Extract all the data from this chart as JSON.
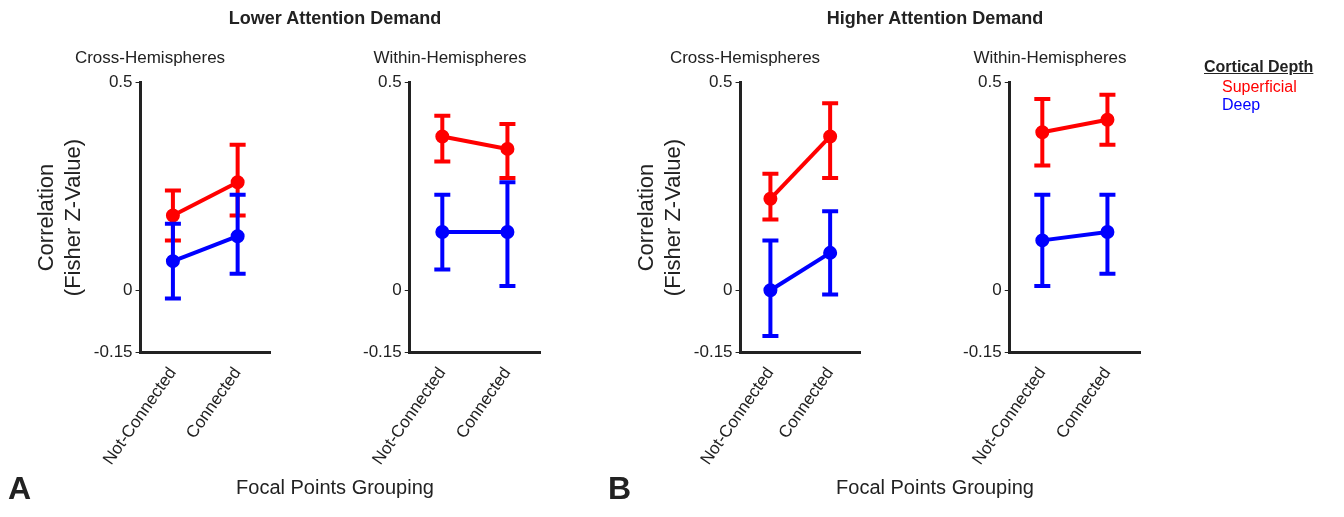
{
  "chart_data": [
    {
      "type": "line",
      "title": "Lower Attention Demand",
      "subtitle": "Cross-Hemispheres",
      "xlabel": "Focal Points Grouping",
      "ylabel": "Correlation (Fisher Z-Value)",
      "annotations": [
        "A"
      ],
      "categories": [
        "Not-Connected",
        "Connected"
      ],
      "ylim": [
        -0.15,
        0.5
      ],
      "yticks": [
        -0.15,
        0,
        0.5
      ],
      "grid": false,
      "legend": false,
      "marker": "circle",
      "line_style": "solid",
      "series": [
        {
          "color": "#ff0000",
          "values": [
            0.18,
            0.26
          ],
          "errors": [
            [
              0.12,
              0.24
            ],
            [
              0.18,
              0.35
            ]
          ]
        },
        {
          "color": "#0000ff",
          "values": [
            0.07,
            0.13
          ],
          "errors": [
            [
              -0.02,
              0.16
            ],
            [
              0.04,
              0.23
            ]
          ]
        }
      ]
    },
    {
      "type": "line",
      "subtitle": "Within-Hemispheres",
      "categories": [
        "Not-Connected",
        "Connected"
      ],
      "ylim": [
        -0.15,
        0.5
      ],
      "yticks": [
        -0.15,
        0,
        0.5
      ],
      "grid": false,
      "legend": false,
      "marker": "circle",
      "line_style": "solid",
      "series": [
        {
          "color": "#ff0000",
          "values": [
            0.37,
            0.34
          ],
          "errors": [
            [
              0.31,
              0.42
            ],
            [
              0.27,
              0.4
            ]
          ]
        },
        {
          "color": "#0000ff",
          "values": [
            0.14,
            0.14
          ],
          "errors": [
            [
              0.05,
              0.23
            ],
            [
              0.01,
              0.26
            ]
          ]
        }
      ]
    },
    {
      "type": "line",
      "title": "Higher Attention Demand",
      "subtitle": "Cross-Hemispheres",
      "xlabel": "Focal Points Grouping",
      "ylabel": "Correlation (Fisher Z-Value)",
      "annotations": [
        "B"
      ],
      "categories": [
        "Not-Connected",
        "Connected"
      ],
      "ylim": [
        -0.15,
        0.5
      ],
      "yticks": [
        -0.15,
        0,
        0.5
      ],
      "grid": false,
      "legend": false,
      "marker": "circle",
      "line_style": "solid",
      "series": [
        {
          "color": "#ff0000",
          "values": [
            0.22,
            0.37
          ],
          "errors": [
            [
              0.17,
              0.28
            ],
            [
              0.27,
              0.45
            ]
          ]
        },
        {
          "color": "#0000ff",
          "values": [
            0.0,
            0.09
          ],
          "errors": [
            [
              -0.11,
              0.12
            ],
            [
              -0.01,
              0.19
            ]
          ]
        }
      ]
    },
    {
      "type": "line",
      "subtitle": "Within-Hemispheres",
      "legend_title": "Cortical Depth",
      "categories": [
        "Not-Connected",
        "Connected"
      ],
      "ylim": [
        -0.15,
        0.5
      ],
      "yticks": [
        -0.15,
        0,
        0.5
      ],
      "grid": false,
      "legend": "right",
      "marker": "circle",
      "line_style": "solid",
      "series": [
        {
          "name": "Superficial",
          "color": "#ff0000",
          "values": [
            0.38,
            0.41
          ],
          "errors": [
            [
              0.3,
              0.46
            ],
            [
              0.35,
              0.47
            ]
          ]
        },
        {
          "name": "Deep",
          "color": "#0000ff",
          "values": [
            0.12,
            0.14
          ],
          "errors": [
            [
              0.01,
              0.23
            ],
            [
              0.04,
              0.23
            ]
          ]
        }
      ]
    }
  ]
}
